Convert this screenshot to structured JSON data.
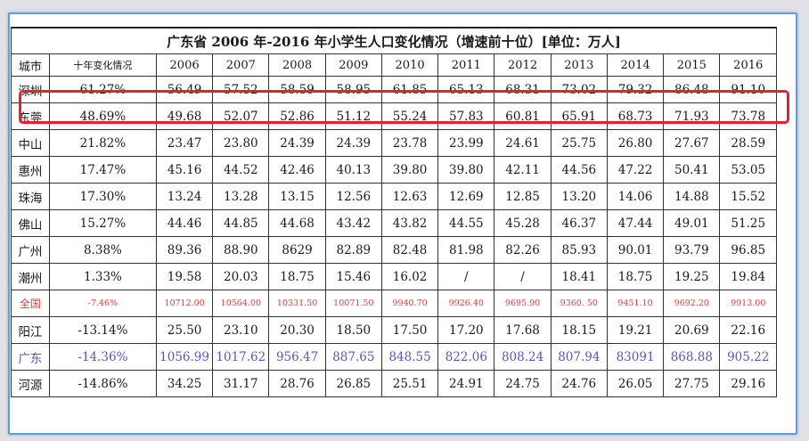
{
  "table": {
    "title": "广东省 2006 年-2016 年小学生人口变化情况（增速前十位）[单位：万人]",
    "headers": [
      "城市",
      "十年变化情况",
      "2006",
      "2007",
      "2008",
      "2009",
      "2010",
      "2011",
      "2012",
      "2013",
      "2014",
      "2015",
      "2016"
    ],
    "rows": [
      {
        "style": "normal",
        "cells": [
          "深圳",
          "61.27%",
          "56.49",
          "57.52",
          "58.59",
          "58.95",
          "61.85",
          "65.13",
          "68.31",
          "73.02",
          "79.32",
          "86.48",
          "91.10"
        ]
      },
      {
        "style": "normal",
        "cells": [
          "东莞",
          "48.69%",
          "49.68",
          "52.07",
          "52.86",
          "51.12",
          "55.24",
          "57.83",
          "60.81",
          "65.91",
          "68.73",
          "71.93",
          "73.78"
        ]
      },
      {
        "style": "normal",
        "cells": [
          "中山",
          "21.82%",
          "23.47",
          "23.80",
          "24.39",
          "24.39",
          "23.78",
          "23.99",
          "24.61",
          "25.75",
          "26.80",
          "27.67",
          "28.59"
        ]
      },
      {
        "style": "normal",
        "cells": [
          "惠州",
          "17.47%",
          "45.16",
          "44.52",
          "42.46",
          "40.13",
          "39.80",
          "39.80",
          "42.11",
          "44.56",
          "47.22",
          "50.41",
          "53.05"
        ]
      },
      {
        "style": "normal",
        "cells": [
          "珠海",
          "17.30%",
          "13.24",
          "13.28",
          "13.15",
          "12.56",
          "12.63",
          "12.69",
          "12.85",
          "13.20",
          "14.06",
          "14.88",
          "15.52"
        ]
      },
      {
        "style": "normal",
        "cells": [
          "佛山",
          "15.27%",
          "44.46",
          "44.85",
          "44.68",
          "43.42",
          "43.82",
          "44.55",
          "45.28",
          "46.37",
          "47.44",
          "49.01",
          "51.25"
        ]
      },
      {
        "style": "normal",
        "cells": [
          "广州",
          "8.38%",
          "89.36",
          "88.90",
          "8629",
          "82.89",
          "82.48",
          "81.98",
          "82.26",
          "85.93",
          "90.01",
          "93.79",
          "96.85"
        ]
      },
      {
        "style": "normal",
        "cells": [
          "潮州",
          "1.33%",
          "19.58",
          "20.03",
          "18.75",
          "15.46",
          "16.02",
          "/",
          "/",
          "18.41",
          "18.75",
          "19.25",
          "19.84"
        ]
      },
      {
        "style": "red",
        "cells": [
          "全国",
          "-7.46%",
          "10712.00",
          "10564.00",
          "10331.50",
          "10071.50",
          "9940.70",
          "9926.40",
          "9695.90",
          "9360. 50",
          "9451.10",
          "9692.20",
          "9913.00"
        ]
      },
      {
        "style": "normal",
        "cells": [
          "阳江",
          "-13.14%",
          "25.50",
          "23.10",
          "20.30",
          "18.50",
          "17.50",
          "17.20",
          "17.68",
          "18.15",
          "19.21",
          "20.69",
          "22.16"
        ]
      },
      {
        "style": "blue",
        "cells": [
          "广东",
          "-14.36%",
          "1056.99",
          "1017.62",
          "956.47",
          "887.65",
          "848.55",
          "822.06",
          "808.24",
          "807.94",
          "83091",
          "868.88",
          "905.22"
        ]
      },
      {
        "style": "normal",
        "cells": [
          "河源",
          "-14.86%",
          "34.25",
          "31.17",
          "28.76",
          "26.85",
          "25.51",
          "24.91",
          "24.75",
          "24.76",
          "26.05",
          "27.75",
          "29.16"
        ]
      }
    ]
  },
  "colors": {
    "highlight_box": "#e8202a",
    "national_row_text": "#d14040",
    "province_row_text": "#5a55b8",
    "frame_border": "#5aa0e0"
  }
}
